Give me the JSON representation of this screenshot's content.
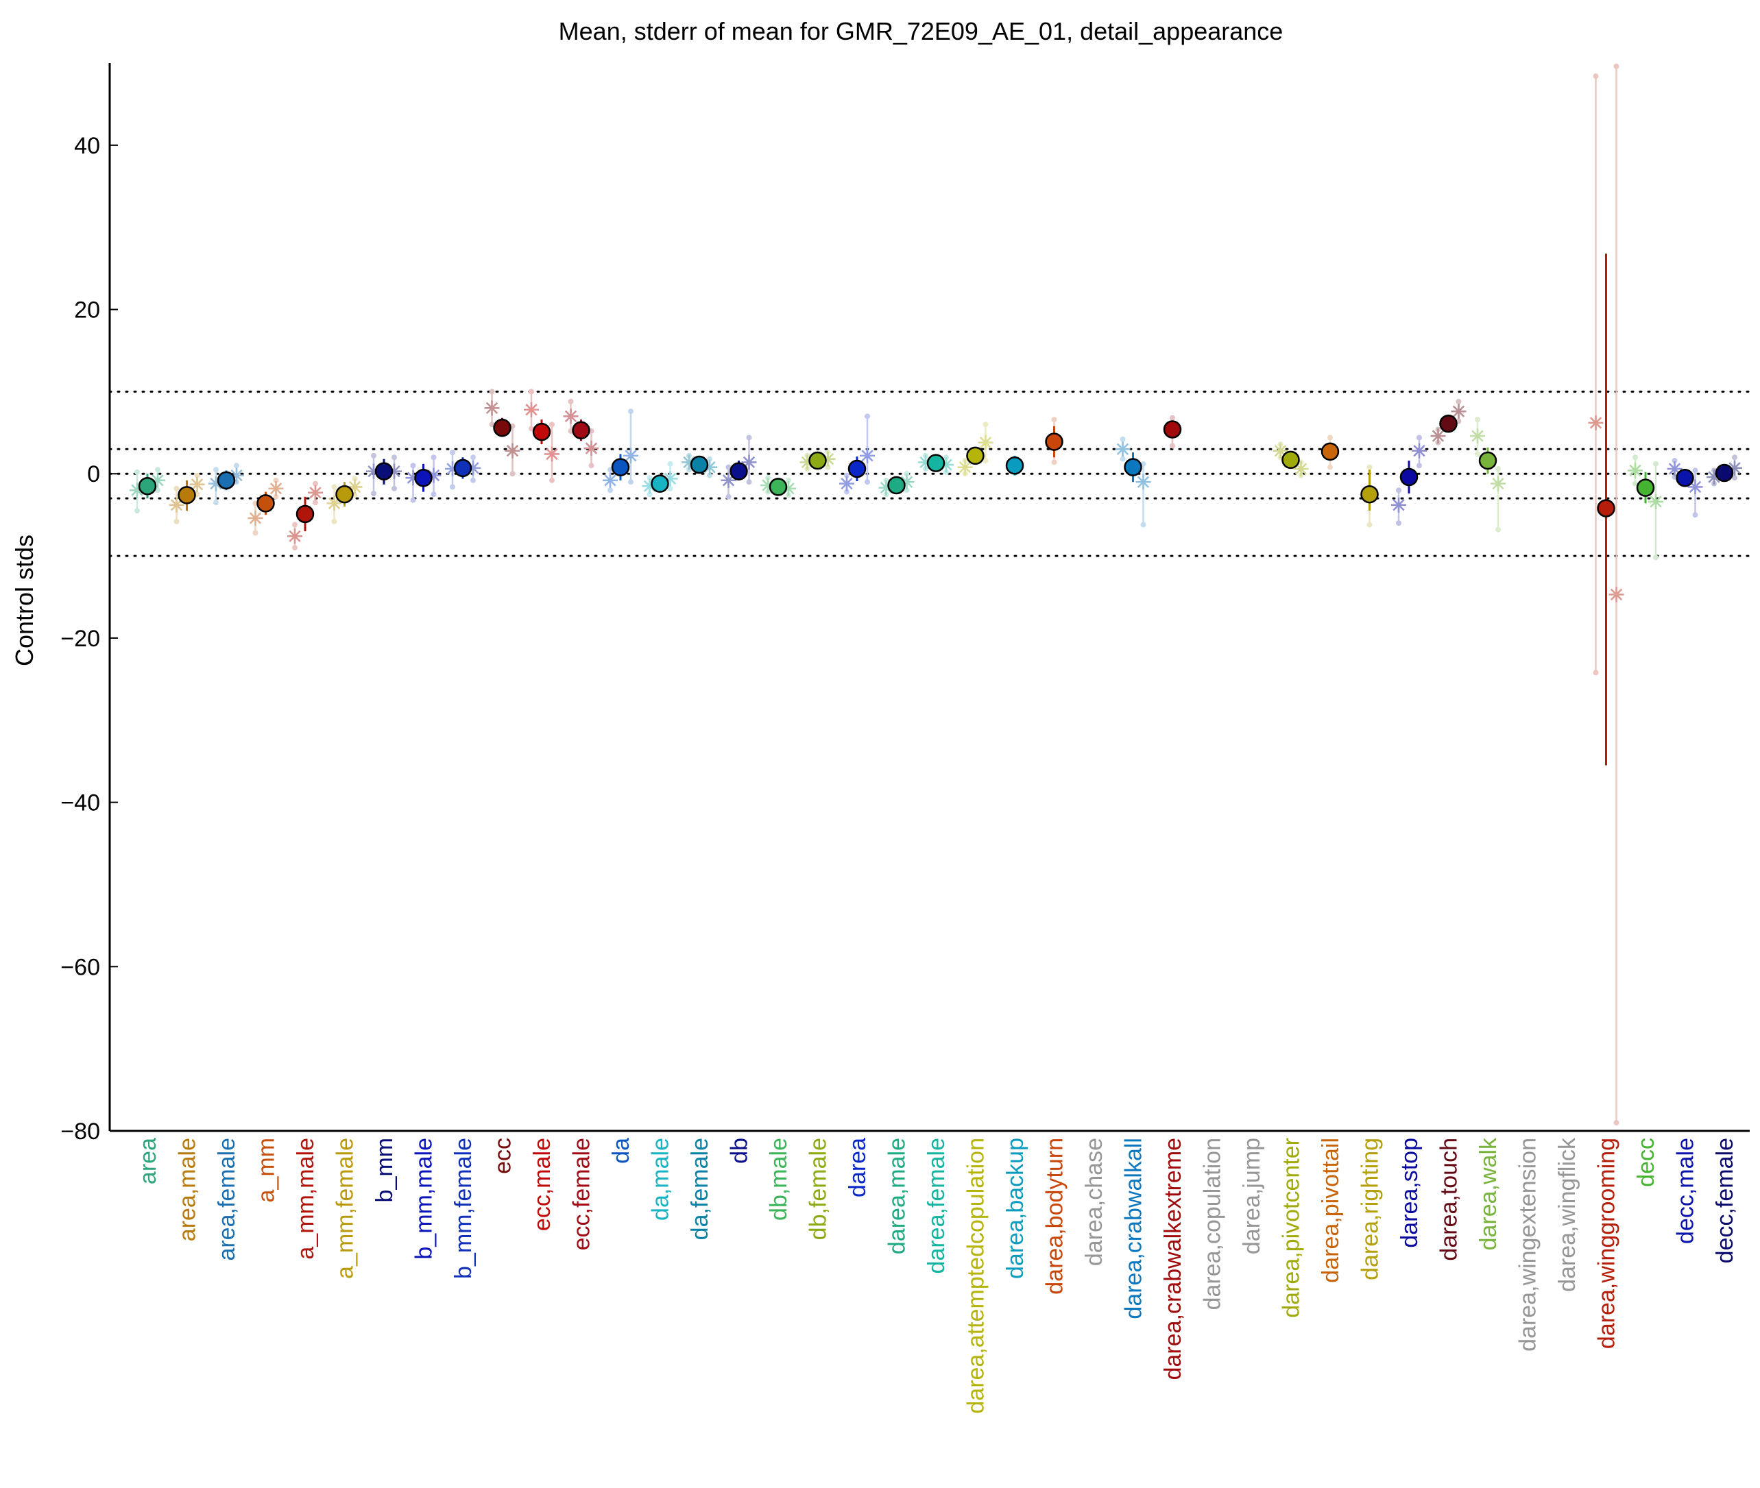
{
  "chart_data": {
    "type": "scatter",
    "title": "Mean, stderr of mean for GMR_72E09_AE_01, detail_appearance",
    "xlabel": "",
    "ylabel": "Control stds",
    "ylim": [
      -80,
      50
    ],
    "yticks": [
      -80,
      -60,
      -40,
      -20,
      0,
      20,
      40
    ],
    "ytick_labels": [
      "−80",
      "−60",
      "−40",
      "−20",
      "0",
      "20",
      "40"
    ],
    "reference_lines": [
      10,
      3,
      0,
      -3,
      -10
    ],
    "grid": false,
    "legend": "none",
    "categories": [
      {
        "label": "area",
        "color": "#2ca57a",
        "mean": -1.5,
        "lo": -3.0,
        "hi": 0.0,
        "groups": [
          {
            "mean": -2.0,
            "lo": -4.5,
            "hi": 0.2
          },
          {
            "mean": -0.8,
            "lo": -2.0,
            "hi": 0.5
          }
        ]
      },
      {
        "label": "area,male",
        "color": "#b87a0b",
        "mean": -2.6,
        "lo": -4.5,
        "hi": -0.8,
        "groups": [
          {
            "mean": -3.8,
            "lo": -5.8,
            "hi": -1.8
          },
          {
            "mean": -1.3,
            "lo": -2.5,
            "hi": -0.2
          }
        ]
      },
      {
        "label": "area,female",
        "color": "#1a6fb0",
        "mean": -0.8,
        "lo": -2.0,
        "hi": 0.4,
        "groups": [
          {
            "mean": -1.2,
            "lo": -3.5,
            "hi": 0.5
          },
          {
            "mean": -0.2,
            "lo": -1.0,
            "hi": 1.0
          }
        ]
      },
      {
        "label": "a_mm",
        "color": "#c4500c",
        "mean": -3.6,
        "lo": -5.0,
        "hi": -2.2,
        "groups": [
          {
            "mean": -5.4,
            "lo": -7.2,
            "hi": -3.6
          },
          {
            "mean": -1.8,
            "lo": -2.8,
            "hi": -0.8
          }
        ]
      },
      {
        "label": "a_mm,male",
        "color": "#b0150a",
        "mean": -4.9,
        "lo": -7.0,
        "hi": -2.8,
        "groups": [
          {
            "mean": -7.6,
            "lo": -9.0,
            "hi": -6.2
          },
          {
            "mean": -2.3,
            "lo": -3.5,
            "hi": -1.2
          }
        ]
      },
      {
        "label": "a_mm,female",
        "color": "#b89a0b",
        "mean": -2.5,
        "lo": -4.0,
        "hi": -1.0,
        "groups": [
          {
            "mean": -3.6,
            "lo": -5.8,
            "hi": -1.6
          },
          {
            "mean": -1.6,
            "lo": -2.6,
            "hi": -0.6
          }
        ]
      },
      {
        "label": "b_mm",
        "color": "#0a0f78",
        "mean": 0.3,
        "lo": -1.3,
        "hi": 1.8,
        "groups": [
          {
            "mean": 0.3,
            "lo": -2.4,
            "hi": 2.2
          },
          {
            "mean": 0.3,
            "lo": -1.8,
            "hi": 2.0
          }
        ]
      },
      {
        "label": "b_mm,male",
        "color": "#0a14b8",
        "mean": -0.5,
        "lo": -2.2,
        "hi": 1.2,
        "groups": [
          {
            "mean": -0.5,
            "lo": -3.2,
            "hi": 1.0
          },
          {
            "mean": -0.2,
            "lo": -2.5,
            "hi": 2.0
          }
        ]
      },
      {
        "label": "b_mm,female",
        "color": "#1030b8",
        "mean": 0.7,
        "lo": -0.6,
        "hi": 2.0,
        "groups": [
          {
            "mean": 0.6,
            "lo": -1.6,
            "hi": 2.6
          },
          {
            "mean": 0.7,
            "lo": -0.8,
            "hi": 2.0
          }
        ]
      },
      {
        "label": "ecc",
        "color": "#780a0a",
        "mean": 5.6,
        "lo": 4.5,
        "hi": 6.8,
        "groups": [
          {
            "mean": 8.0,
            "lo": 6.0,
            "hi": 10.0
          },
          {
            "mean": 2.8,
            "lo": 0.0,
            "hi": 5.8
          }
        ]
      },
      {
        "label": "ecc,male",
        "color": "#c00a0a",
        "mean": 5.1,
        "lo": 3.6,
        "hi": 6.6,
        "groups": [
          {
            "mean": 7.8,
            "lo": 5.5,
            "hi": 10.0
          },
          {
            "mean": 2.4,
            "lo": -0.8,
            "hi": 6.0
          }
        ]
      },
      {
        "label": "ecc,female",
        "color": "#a00a14",
        "mean": 5.3,
        "lo": 4.0,
        "hi": 6.6,
        "groups": [
          {
            "mean": 7.0,
            "lo": 5.2,
            "hi": 8.8
          },
          {
            "mean": 3.1,
            "lo": 1.0,
            "hi": 5.2
          }
        ]
      },
      {
        "label": "da",
        "color": "#0a55c0",
        "mean": 0.8,
        "lo": -0.8,
        "hi": 2.4,
        "groups": [
          {
            "mean": -0.8,
            "lo": -2.0,
            "hi": 0.5
          },
          {
            "mean": 2.2,
            "lo": -1.0,
            "hi": 7.6
          }
        ]
      },
      {
        "label": "da,male",
        "color": "#18b4c4",
        "mean": -1.2,
        "lo": -2.0,
        "hi": -0.4,
        "groups": [
          {
            "mean": -1.5,
            "lo": -2.5,
            "hi": -0.5
          },
          {
            "mean": -0.6,
            "lo": -1.8,
            "hi": 1.2
          }
        ]
      },
      {
        "label": "da,female",
        "color": "#0a82a6",
        "mean": 1.1,
        "lo": 0.2,
        "hi": 2.0,
        "groups": [
          {
            "mean": 1.4,
            "lo": 0.5,
            "hi": 2.2
          },
          {
            "mean": 0.8,
            "lo": -0.2,
            "hi": 1.8
          }
        ]
      },
      {
        "label": "db",
        "color": "#0a0f8c",
        "mean": 0.3,
        "lo": -0.8,
        "hi": 1.6,
        "groups": [
          {
            "mean": -0.8,
            "lo": -2.8,
            "hi": 0.8
          },
          {
            "mean": 1.4,
            "lo": -1.0,
            "hi": 4.4
          }
        ]
      },
      {
        "label": "db,male",
        "color": "#3cb45a",
        "mean": -1.6,
        "lo": -2.4,
        "hi": -0.8,
        "groups": [
          {
            "mean": -1.4,
            "lo": -2.2,
            "hi": -0.5
          },
          {
            "mean": -1.8,
            "lo": -2.6,
            "hi": -0.8
          }
        ]
      },
      {
        "label": "db,female",
        "color": "#8caa14",
        "mean": 1.6,
        "lo": 0.8,
        "hi": 2.4,
        "groups": [
          {
            "mean": 1.4,
            "lo": 0.6,
            "hi": 2.2
          },
          {
            "mean": 1.8,
            "lo": 0.8,
            "hi": 2.6
          }
        ]
      },
      {
        "label": "darea",
        "color": "#0a28c8",
        "mean": 0.6,
        "lo": -0.9,
        "hi": 2.1,
        "groups": [
          {
            "mean": -1.2,
            "lo": -2.2,
            "hi": -0.2
          },
          {
            "mean": 2.2,
            "lo": -1.0,
            "hi": 7.0
          }
        ]
      },
      {
        "label": "darea,male",
        "color": "#1eaa82",
        "mean": -1.4,
        "lo": -2.2,
        "hi": -0.6,
        "groups": [
          {
            "mean": -1.7,
            "lo": -2.5,
            "hi": -0.8
          },
          {
            "mean": -1.0,
            "lo": -2.0,
            "hi": 0.0
          }
        ]
      },
      {
        "label": "darea,female",
        "color": "#14b4a0",
        "mean": 1.3,
        "lo": 0.5,
        "hi": 2.1,
        "groups": [
          {
            "mean": 1.4,
            "lo": 0.6,
            "hi": 2.2
          },
          {
            "mean": 1.1,
            "lo": 0.2,
            "hi": 2.0
          }
        ]
      },
      {
        "label": "darea,attemptedcopulation",
        "color": "#b4b40a",
        "mean": 2.2,
        "lo": 1.2,
        "hi": 3.2,
        "groups": [
          {
            "mean": 0.8,
            "lo": 0.0,
            "hi": 1.6
          },
          {
            "mean": 3.8,
            "lo": 1.6,
            "hi": 6.0
          }
        ]
      },
      {
        "label": "darea,backup",
        "color": "#0a9cbe",
        "mean": 1.0,
        "lo": -0.2,
        "hi": 2.2,
        "groups": []
      },
      {
        "label": "darea,bodyturn",
        "color": "#c8460a",
        "mean": 3.9,
        "lo": 2.0,
        "hi": 5.8,
        "groups": [
          {
            "mean": 3.9,
            "lo": 1.4,
            "hi": 6.6
          }
        ]
      },
      {
        "label": "darea,chase",
        "color": "#969696",
        "mean": null,
        "lo": null,
        "hi": null,
        "groups": []
      },
      {
        "label": "darea,crabwalkall",
        "color": "#0a78be",
        "mean": 0.8,
        "lo": -1.0,
        "hi": 2.6,
        "groups": [
          {
            "mean": 3.0,
            "lo": 1.8,
            "hi": 4.2
          },
          {
            "mean": -1.0,
            "lo": -6.2,
            "hi": 1.2
          }
        ]
      },
      {
        "label": "darea,crabwalkextreme",
        "color": "#a00a0a",
        "mean": 5.4,
        "lo": 4.4,
        "hi": 6.4,
        "groups": [
          {
            "mean": 5.4,
            "lo": 3.4,
            "hi": 6.8
          }
        ]
      },
      {
        "label": "darea,copulation",
        "color": "#969696",
        "mean": null,
        "lo": null,
        "hi": null,
        "groups": []
      },
      {
        "label": "darea,jump",
        "color": "#969696",
        "mean": null,
        "lo": null,
        "hi": null,
        "groups": []
      },
      {
        "label": "darea,pivotcenter",
        "color": "#a0aa0a",
        "mean": 1.7,
        "lo": 0.8,
        "hi": 2.6,
        "groups": [
          {
            "mean": 2.8,
            "lo": 2.0,
            "hi": 3.6
          },
          {
            "mean": 0.6,
            "lo": -0.2,
            "hi": 1.4
          }
        ]
      },
      {
        "label": "darea,pivottail",
        "color": "#c8640a",
        "mean": 2.7,
        "lo": 1.8,
        "hi": 3.6,
        "groups": [
          {
            "mean": 2.7,
            "lo": 0.8,
            "hi": 4.4
          }
        ]
      },
      {
        "label": "darea,righting",
        "color": "#b4a00a",
        "mean": -2.5,
        "lo": -4.5,
        "hi": 0.5,
        "groups": [
          {
            "mean": -2.5,
            "lo": -6.2,
            "hi": 0.8
          }
        ]
      },
      {
        "label": "darea,stop",
        "color": "#0a0aa0",
        "mean": -0.4,
        "lo": -2.4,
        "hi": 1.6,
        "groups": [
          {
            "mean": -3.8,
            "lo": -6.0,
            "hi": -2.0
          },
          {
            "mean": 2.8,
            "lo": 1.0,
            "hi": 4.4
          }
        ]
      },
      {
        "label": "darea,touch",
        "color": "#640a14",
        "mean": 6.1,
        "lo": 5.2,
        "hi": 7.0,
        "groups": [
          {
            "mean": 4.6,
            "lo": 3.8,
            "hi": 5.4
          },
          {
            "mean": 7.6,
            "lo": 6.4,
            "hi": 8.8
          }
        ]
      },
      {
        "label": "darea,walk",
        "color": "#78b43c",
        "mean": 1.6,
        "lo": 0.0,
        "hi": 3.2,
        "groups": [
          {
            "mean": 4.6,
            "lo": 2.4,
            "hi": 6.6
          },
          {
            "mean": -1.2,
            "lo": -6.8,
            "hi": 0.6
          }
        ]
      },
      {
        "label": "darea,wingextension",
        "color": "#969696",
        "mean": null,
        "lo": null,
        "hi": null,
        "groups": []
      },
      {
        "label": "darea,wingflick",
        "color": "#969696",
        "mean": null,
        "lo": null,
        "hi": null,
        "groups": []
      },
      {
        "label": "darea,winggrooming",
        "color": "#b41e0a",
        "mean": -4.2,
        "lo": -35.5,
        "hi": 26.8,
        "groups": [
          {
            "mean": 6.2,
            "lo": -24.2,
            "hi": 48.4
          },
          {
            "mean": -14.7,
            "lo": -79.0,
            "hi": 49.6
          }
        ]
      },
      {
        "label": "decc",
        "color": "#46b432",
        "mean": -1.7,
        "lo": -3.6,
        "hi": 0.2,
        "groups": [
          {
            "mean": 0.4,
            "lo": -1.2,
            "hi": 2.0
          },
          {
            "mean": -3.4,
            "lo": -10.2,
            "hi": 1.2
          }
        ]
      },
      {
        "label": "decc,male",
        "color": "#0a14aa",
        "mean": -0.5,
        "lo": -1.6,
        "hi": 0.6,
        "groups": [
          {
            "mean": 0.6,
            "lo": -0.4,
            "hi": 1.6
          },
          {
            "mean": -1.6,
            "lo": -5.0,
            "hi": 0.4
          }
        ]
      },
      {
        "label": "decc,female",
        "color": "#0a0a6e",
        "mean": 0.1,
        "lo": -0.6,
        "hi": 0.8,
        "groups": [
          {
            "mean": -0.4,
            "lo": -1.2,
            "hi": 0.4
          },
          {
            "mean": 0.7,
            "lo": -0.5,
            "hi": 2.0
          }
        ]
      }
    ]
  }
}
